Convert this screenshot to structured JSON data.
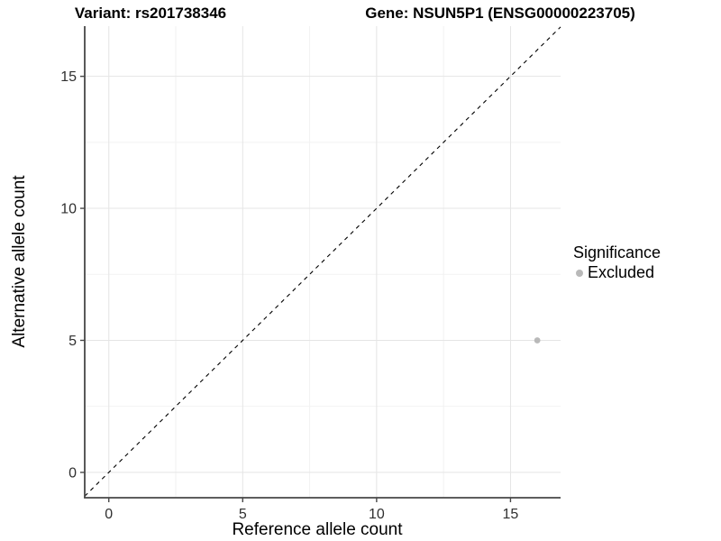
{
  "titles": {
    "variant": "Variant: rs201738346",
    "gene": "Gene: NSUN5P1 (ENSG00000223705)"
  },
  "legend": {
    "title": "Significance",
    "items": [
      {
        "label": "Excluded",
        "color": "#b9b9b9"
      }
    ]
  },
  "colors": {
    "point": "#b9b9b9",
    "identity_line": "#000000",
    "axis_line": "#474747",
    "tick_text": "#303030",
    "grid_major": "#e5e5e5",
    "grid_minor": "#f2f2f2",
    "background": "#ffffff"
  },
  "chart_data": {
    "type": "scatter",
    "title": "Variant: rs201738346 | Gene: NSUN5P1 (ENSG00000223705)",
    "xlabel": "Reference allele count",
    "ylabel": "Alternative allele count",
    "xlim": [
      -0.9,
      16.87
    ],
    "ylim": [
      -0.96,
      16.9
    ],
    "x_ticks": [
      0,
      5,
      10,
      15
    ],
    "y_ticks": [
      0,
      5,
      10,
      15
    ],
    "x_minor_ticks": [
      2.5,
      7.5,
      12.5
    ],
    "y_minor_ticks": [
      2.5,
      7.5,
      12.5
    ],
    "grid": true,
    "legend_position": "right",
    "reference_line": {
      "type": "identity",
      "equation": "y = x",
      "style": "dashed",
      "color": "#000000"
    },
    "series": [
      {
        "name": "Excluded",
        "color": "#b9b9b9",
        "points": [
          {
            "x": 16,
            "y": 5
          }
        ]
      }
    ]
  }
}
